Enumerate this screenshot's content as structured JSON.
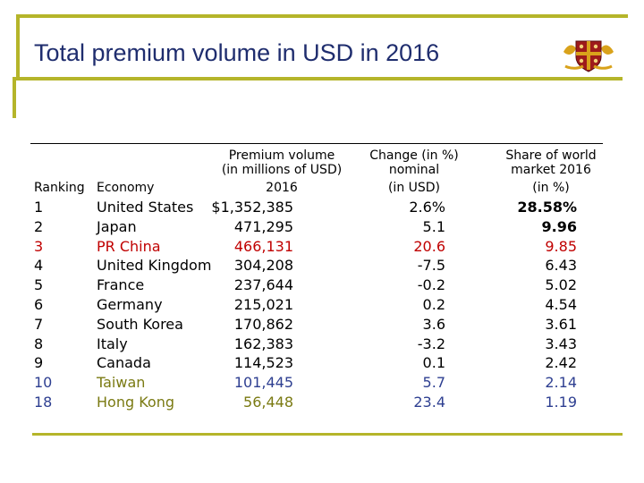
{
  "slide": {
    "title": "Total premium volume in USD in 2016"
  },
  "table": {
    "headers": {
      "volume": [
        "Premium volume",
        "(in millions of USD)",
        "2016"
      ],
      "change": [
        "Change (in %)",
        "nominal",
        "(in USD)"
      ],
      "share": [
        "Share of world",
        "market 2016",
        "(in %)"
      ],
      "ranking": "Ranking",
      "economy": "Economy"
    },
    "rows": [
      {
        "rank": "1",
        "economy": "United States",
        "volume": "$1,352,385",
        "change": "2.6%",
        "share": "28.58%"
      },
      {
        "rank": "2",
        "economy": "Japan",
        "volume": "471,295",
        "change": "5.1",
        "share": "9.96"
      },
      {
        "rank": "3",
        "economy": "PR China",
        "volume": "466,131",
        "change": "20.6",
        "share": "9.85"
      },
      {
        "rank": "4",
        "economy": "United Kingdom",
        "volume": "304,208",
        "change": "-7.5",
        "share": "6.43"
      },
      {
        "rank": "5",
        "economy": "France",
        "volume": "237,644",
        "change": "-0.2",
        "share": "5.02"
      },
      {
        "rank": "6",
        "economy": "Germany",
        "volume": "215,021",
        "change": "0.2",
        "share": "4.54"
      },
      {
        "rank": "7",
        "economy": "South Korea",
        "volume": "170,862",
        "change": "3.6",
        "share": "3.61"
      },
      {
        "rank": "8",
        "economy": "Italy",
        "volume": "162,383",
        "change": "-3.2",
        "share": "3.43"
      },
      {
        "rank": "9",
        "economy": "Canada",
        "volume": "114,523",
        "change": "0.1",
        "share": "2.42"
      },
      {
        "rank": "10",
        "economy": "Taiwan",
        "volume": "101,445",
        "change": "5.7",
        "share": "2.14"
      },
      {
        "rank": "18",
        "economy": "Hong Kong",
        "volume": "56,448",
        "change": "23.4",
        "share": "1.19"
      }
    ]
  },
  "colors": {
    "title": "#1f2d6e",
    "frame": "#b5b52a",
    "highlight_red": "#c00000",
    "highlight_blue": "#2e3f91",
    "highlight_olive": "#7a7a12"
  }
}
